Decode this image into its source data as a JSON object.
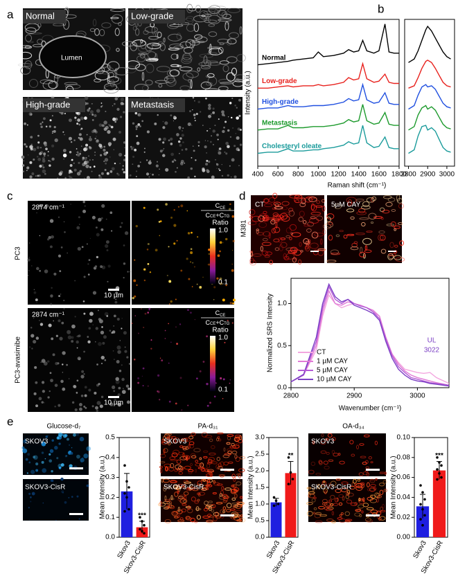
{
  "panels": {
    "a": {
      "label": "a",
      "images": [
        "Normal",
        "Low-grade",
        "High-grade",
        "Metastasis"
      ],
      "lumen": "Lumen"
    },
    "b": {
      "label": "b"
    },
    "c": {
      "label": "c",
      "rows": [
        "PC3",
        "PC3-avasimibe"
      ],
      "wavenumber": "2874 cm⁻¹",
      "scale": "10 µm",
      "numerator": [
        "C",
        "CE"
      ],
      "denominator": [
        "C",
        "CE",
        "+",
        "C",
        "TG"
      ],
      "ratio": "Ratio",
      "max": "1.0",
      "min": "0.1"
    },
    "d": {
      "label": "d",
      "cell": "M381",
      "images": [
        "CT",
        "5µM CAY"
      ]
    },
    "e": {
      "label": "e",
      "images": [
        "SKOV3",
        "SKOV3-CisR"
      ]
    }
  },
  "chart_data": [
    {
      "type": "line",
      "xlabel": "Raman shift (cm⁻¹)",
      "ylabel": "Intensity (a.u.)",
      "x": [
        400,
        500,
        600,
        700,
        750,
        850,
        950,
        1000,
        1050,
        1150,
        1250,
        1300,
        1350,
        1400,
        1440,
        1480,
        1550,
        1600,
        1660,
        1700,
        1750,
        1800
      ],
      "xlim": [
        400,
        1800
      ],
      "xticks": [
        400,
        600,
        800,
        1000,
        1200,
        1400,
        1600,
        1800
      ],
      "ylim": [
        0,
        6.3
      ],
      "series": [
        {
          "name": "Normal",
          "color": "#000000",
          "values": [
            4.35,
            4.4,
            4.45,
            4.5,
            4.55,
            4.6,
            4.65,
            4.9,
            4.7,
            4.75,
            4.85,
            5.0,
            4.9,
            4.95,
            5.4,
            4.95,
            4.85,
            4.95,
            6.1,
            4.9,
            4.85,
            4.85
          ]
        },
        {
          "name": "Low-grade",
          "color": "#e8201c",
          "values": [
            3.35,
            3.35,
            3.4,
            3.45,
            3.4,
            3.45,
            3.45,
            3.5,
            3.45,
            3.5,
            3.6,
            3.8,
            3.7,
            3.75,
            4.4,
            3.75,
            3.6,
            3.65,
            3.95,
            3.6,
            3.55,
            3.55
          ]
        },
        {
          "name": "High-grade",
          "color": "#1f4fe0",
          "values": [
            2.45,
            2.5,
            2.5,
            2.6,
            2.55,
            2.55,
            2.6,
            2.6,
            2.6,
            2.65,
            2.75,
            2.9,
            2.8,
            2.85,
            3.5,
            2.85,
            2.7,
            2.75,
            3.15,
            2.7,
            2.65,
            2.65
          ]
        },
        {
          "name": "Metastasis",
          "color": "#1c9a2c",
          "values": [
            1.55,
            1.6,
            1.6,
            1.75,
            1.65,
            1.65,
            1.7,
            1.7,
            1.7,
            1.75,
            1.85,
            2.0,
            1.9,
            1.95,
            2.65,
            1.95,
            1.8,
            1.85,
            2.3,
            1.8,
            1.75,
            1.75
          ]
        },
        {
          "name": "Cholesteryl oleate",
          "color": "#1a9b9b",
          "values": [
            0.55,
            0.6,
            0.6,
            0.75,
            0.65,
            0.65,
            0.7,
            0.7,
            0.75,
            0.8,
            0.9,
            1.05,
            0.95,
            1.0,
            1.75,
            1.0,
            0.8,
            0.85,
            1.25,
            0.8,
            0.75,
            0.75
          ]
        }
      ]
    },
    {
      "type": "line",
      "x": [
        2800,
        2830,
        2850,
        2870,
        2890,
        2900,
        2920,
        2940,
        2960,
        2980,
        3000,
        3020
      ],
      "xlim": [
        2780,
        3040
      ],
      "xticks": [
        2800,
        2900,
        3000
      ],
      "ylim": [
        0,
        6.3
      ],
      "series": [
        {
          "color": "#000000",
          "values": [
            4.45,
            4.6,
            4.95,
            5.4,
            5.85,
            6.0,
            5.8,
            5.5,
            5.2,
            4.9,
            4.7,
            4.6
          ]
        },
        {
          "color": "#e8201c",
          "values": [
            3.35,
            3.45,
            3.8,
            4.2,
            4.5,
            4.55,
            4.45,
            4.2,
            3.9,
            3.6,
            3.45,
            3.4
          ]
        },
        {
          "color": "#1f4fe0",
          "values": [
            2.45,
            2.6,
            3.05,
            3.4,
            3.5,
            3.4,
            3.45,
            3.3,
            3.0,
            2.7,
            2.55,
            2.5
          ]
        },
        {
          "color": "#1c9a2c",
          "values": [
            1.55,
            1.7,
            2.2,
            2.5,
            2.6,
            2.45,
            2.55,
            2.4,
            2.1,
            1.8,
            1.65,
            1.6
          ]
        },
        {
          "color": "#1a9b9b",
          "values": [
            0.55,
            0.7,
            1.3,
            1.7,
            1.75,
            1.55,
            1.65,
            1.5,
            1.15,
            0.8,
            0.65,
            0.6
          ]
        }
      ]
    },
    {
      "type": "line",
      "xlabel": "Wavenumber (cm⁻¹)",
      "ylabel": "Normalized SRS Intensity",
      "legend": "lower left",
      "x": [
        2800,
        2820,
        2840,
        2850,
        2860,
        2870,
        2880,
        2890,
        2900,
        2910,
        2920,
        2930,
        2940,
        2950,
        2960,
        2970,
        2980,
        2990,
        3000,
        3010,
        3020,
        3030,
        3050
      ],
      "xlim": [
        2800,
        3050
      ],
      "xticks": [
        2800,
        2900,
        3000
      ],
      "ylim": [
        0,
        1.3
      ],
      "yticks": [
        {
          "value": 0,
          "label": "0.0"
        },
        0.5,
        {
          "value": 1,
          "label": "1.0"
        }
      ],
      "annotation": {
        "text": [
          "UL",
          "3022"
        ],
        "color": "#7b3fc4"
      },
      "series": [
        {
          "name": "CT",
          "color": "#f3a6df",
          "values": [
            0.07,
            0.15,
            0.45,
            0.85,
            1.1,
            1.0,
            0.95,
            0.98,
            1.0,
            0.98,
            0.95,
            0.9,
            0.85,
            0.6,
            0.4,
            0.3,
            0.22,
            0.2,
            0.18,
            0.17,
            0.18,
            0.12,
            0.05
          ]
        },
        {
          "name": "1 µM CAY",
          "color": "#e07ad6",
          "values": [
            0.07,
            0.15,
            0.5,
            0.9,
            1.15,
            1.0,
            0.98,
            1.02,
            1.0,
            0.98,
            0.95,
            0.92,
            0.85,
            0.6,
            0.4,
            0.28,
            0.2,
            0.15,
            0.12,
            0.1,
            0.08,
            0.06,
            0.03
          ]
        },
        {
          "name": "5 µM CAY",
          "color": "#b25ad6",
          "values": [
            0.07,
            0.15,
            0.55,
            0.95,
            1.2,
            1.05,
            1.0,
            1.05,
            1.0,
            0.97,
            0.95,
            0.9,
            0.82,
            0.58,
            0.38,
            0.25,
            0.18,
            0.12,
            0.1,
            0.08,
            0.06,
            0.05,
            0.03
          ]
        },
        {
          "name": "10 µM CAY",
          "color": "#7b3fc4",
          "values": [
            0.07,
            0.16,
            0.6,
            1.0,
            1.23,
            1.08,
            1.02,
            1.05,
            0.98,
            0.95,
            0.92,
            0.88,
            0.8,
            0.55,
            0.35,
            0.22,
            0.15,
            0.1,
            0.08,
            0.07,
            0.05,
            0.04,
            0.02
          ]
        }
      ]
    },
    {
      "type": "bar",
      "title": "Glucose-d₇",
      "ylabel": "Mean Intensity (a.u.)",
      "categories": [
        "Skov3",
        "Skov3-CisR"
      ],
      "values": [
        0.23,
        0.05
      ],
      "errors": [
        0.09,
        0.03
      ],
      "colors": [
        "#1f1fe0",
        "#f01a1a"
      ],
      "significance": "***",
      "points": [
        [
          0.36,
          0.28,
          0.25,
          0.22,
          0.2,
          0.14,
          0.13
        ],
        [
          0.1,
          0.08,
          0.06,
          0.04,
          0.03,
          0.02
        ]
      ],
      "ylim": [
        0,
        0.5
      ],
      "yticks": [
        {
          "value": 0,
          "label": "0.0"
        },
        0.1,
        0.2,
        0.3,
        0.4,
        0.5
      ]
    },
    {
      "type": "bar",
      "title": "PA-d₃₁",
      "ylabel": "Mean Intensity (a.u.)",
      "categories": [
        "Skov3",
        "Skov3-CisR"
      ],
      "values": [
        1.05,
        1.93
      ],
      "errors": [
        0.12,
        0.35
      ],
      "colors": [
        "#1f1fe0",
        "#f01a1a"
      ],
      "significance": "**",
      "points": [
        [
          1.2,
          1.1,
          1.0,
          0.95
        ],
        [
          2.4,
          1.95,
          1.75,
          1.6
        ]
      ],
      "ylim": [
        0,
        3
      ],
      "yticks": [
        {
          "value": 0,
          "label": "0.0"
        },
        0.5,
        {
          "value": 1,
          "label": "1.0"
        },
        1.5,
        {
          "value": 2,
          "label": "2.0"
        },
        2.5,
        {
          "value": 3,
          "label": "3.0"
        }
      ]
    },
    {
      "type": "bar",
      "title": "OA-d₃₄",
      "ylabel": "Mean Intensity (a.u.)",
      "categories": [
        "Skov3",
        "Skov3-CisR"
      ],
      "values": [
        0.031,
        0.067
      ],
      "errors": [
        0.012,
        0.009
      ],
      "colors": [
        "#1f1fe0",
        "#f01a1a"
      ],
      "significance": "***",
      "points": [
        [
          0.052,
          0.045,
          0.038,
          0.033,
          0.028,
          0.022,
          0.018,
          0.012
        ],
        [
          0.08,
          0.075,
          0.072,
          0.068,
          0.064,
          0.06,
          0.058
        ]
      ],
      "ylim": [
        0,
        0.1
      ],
      "yticks": [
        {
          "value": 0,
          "label": "0.00"
        },
        0.02,
        0.04,
        0.06,
        0.08,
        {
          "value": 0.1,
          "label": "0.10"
        }
      ]
    }
  ]
}
